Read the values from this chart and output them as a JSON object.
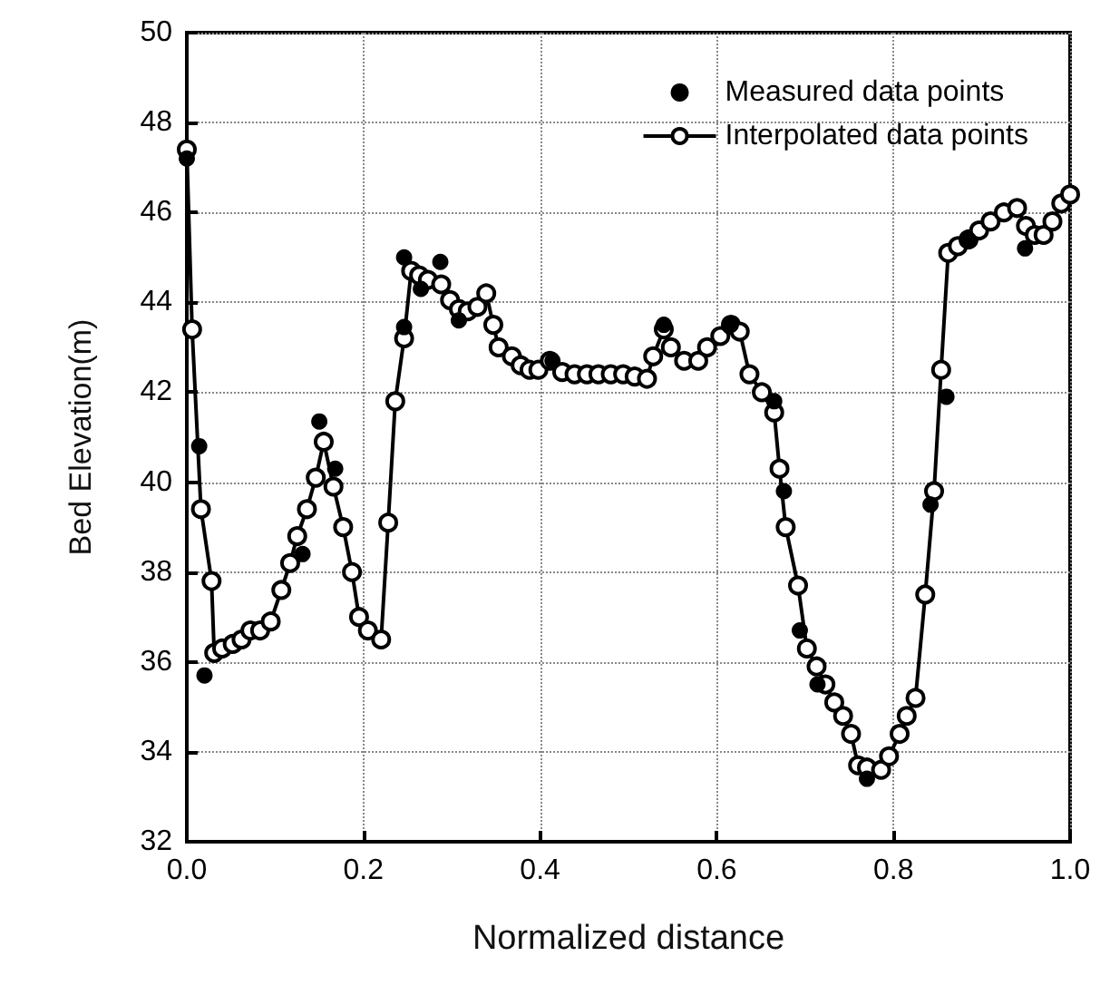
{
  "chart_data": {
    "type": "line",
    "xlabel": "Normalized distance",
    "ylabel": "Bed Elevation(m)",
    "xlim": [
      0,
      1
    ],
    "xticks": [
      {
        "value": 0,
        "label": "0.0"
      },
      {
        "value": 0.2,
        "label": "0.2"
      },
      {
        "value": 0.4,
        "label": "0.4"
      },
      {
        "value": 0.6,
        "label": "0.6"
      },
      {
        "value": 0.8,
        "label": "0.8"
      },
      {
        "value": 1,
        "label": "1.0"
      }
    ],
    "ylim": [
      32,
      50
    ],
    "yticks": [
      32,
      34,
      36,
      38,
      40,
      42,
      44,
      46,
      48,
      50
    ],
    "grid": true,
    "legend": "top right",
    "marker": "circle",
    "line_style": "solid",
    "series": [
      {
        "name": "Measured data points",
        "type": "scatter",
        "color": "#000000",
        "x": [
          0,
          0.014,
          0.02,
          0.131,
          0.15,
          0.168,
          0.246,
          0.246,
          0.265,
          0.287,
          0.308,
          0.414,
          0.54,
          0.616,
          0.665,
          0.676,
          0.694,
          0.714,
          0.77,
          0.842,
          0.86,
          0.885,
          0.949
        ],
        "values": [
          47.2,
          40.8,
          35.7,
          38.4,
          41.35,
          40.3,
          43.45,
          45.0,
          44.3,
          44.9,
          43.6,
          42.7,
          43.5,
          43.5,
          41.8,
          39.8,
          36.7,
          35.5,
          33.4,
          39.5,
          41.9,
          45.4,
          45.2
        ]
      },
      {
        "name": "Interpolated data points",
        "color": "#000000",
        "x": [
          0,
          0.006,
          0.016,
          0.028,
          0.031,
          0.04,
          0.052,
          0.062,
          0.072,
          0.083,
          0.095,
          0.107,
          0.117,
          0.125,
          0.136,
          0.146,
          0.155,
          0.166,
          0.177,
          0.187,
          0.195,
          0.205,
          0.22,
          0.228,
          0.236,
          0.246,
          0.254,
          0.263,
          0.273,
          0.288,
          0.298,
          0.308,
          0.318,
          0.329,
          0.339,
          0.347,
          0.353,
          0.368,
          0.378,
          0.388,
          0.398,
          0.411,
          0.425,
          0.439,
          0.453,
          0.466,
          0.48,
          0.494,
          0.507,
          0.521,
          0.528,
          0.54,
          0.548,
          0.563,
          0.579,
          0.589,
          0.604,
          0.616,
          0.626,
          0.637,
          0.651,
          0.665,
          0.671,
          0.678,
          0.692,
          0.702,
          0.713,
          0.723,
          0.733,
          0.743,
          0.752,
          0.76,
          0.77,
          0.786,
          0.795,
          0.807,
          0.815,
          0.825,
          0.836,
          0.846,
          0.854,
          0.862,
          0.873,
          0.885,
          0.897,
          0.91,
          0.925,
          0.94,
          0.95,
          0.96,
          0.97,
          0.98,
          0.99,
          1.0
        ],
        "values": [
          47.4,
          43.4,
          39.4,
          37.8,
          36.2,
          36.3,
          36.4,
          36.5,
          36.7,
          36.7,
          36.9,
          37.6,
          38.2,
          38.8,
          39.4,
          40.1,
          40.9,
          39.9,
          39.0,
          38.0,
          37.0,
          36.7,
          36.5,
          39.1,
          41.8,
          43.2,
          44.7,
          44.6,
          44.5,
          44.4,
          44.05,
          43.85,
          43.8,
          43.9,
          44.2,
          43.5,
          43.0,
          42.8,
          42.6,
          42.5,
          42.5,
          42.7,
          42.45,
          42.4,
          42.4,
          42.4,
          42.4,
          42.4,
          42.35,
          42.3,
          42.8,
          43.4,
          43.0,
          42.7,
          42.7,
          43.0,
          43.25,
          43.5,
          43.35,
          42.4,
          42.0,
          41.55,
          40.3,
          39.0,
          37.7,
          36.3,
          35.9,
          35.5,
          35.1,
          34.8,
          34.4,
          33.7,
          33.65,
          33.6,
          33.9,
          34.4,
          34.8,
          35.2,
          37.5,
          39.8,
          42.5,
          45.1,
          45.25,
          45.4,
          45.6,
          45.8,
          46.0,
          46.1,
          45.7,
          45.5,
          45.5,
          45.8,
          46.2,
          46.4
        ]
      }
    ]
  }
}
